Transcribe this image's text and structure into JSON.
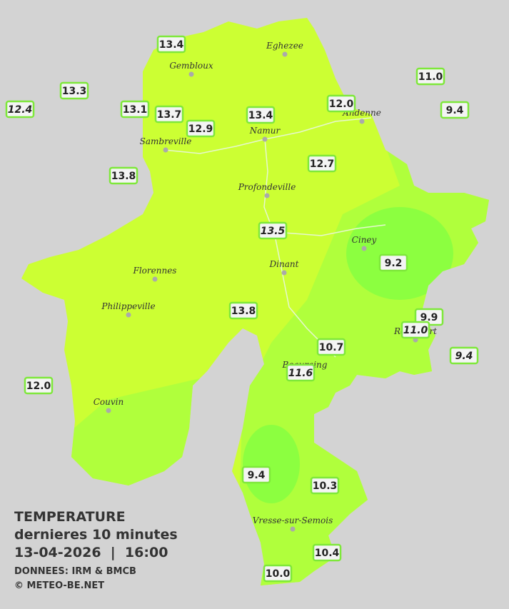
{
  "legend": {
    "title": "TEMPERATURE",
    "period": "dernieres 10 minutes",
    "timestamp": "13-04-2026  |  16:00",
    "source": "DONNEES: IRM & BMCB",
    "copyright": "© METEO-BE.NET"
  },
  "cities": [
    "Eghezee",
    "Gembloux",
    "Andenne",
    "Sambreville",
    "Namur",
    "Profondeville",
    "Ciney",
    "Dinant",
    "Florennes",
    "Philippeville",
    "Rochefort",
    "Beauraing",
    "Couvin",
    "Vresse-sur-Semois"
  ],
  "readings": [
    "13.4",
    "13.3",
    "12.4",
    "13.1",
    "13.7",
    "12.9",
    "13.4",
    "12.0",
    "11.0",
    "9.4",
    "13.8",
    "12.7",
    "13.5",
    "9.2",
    "13.8",
    "9.9",
    "11.0",
    "9.4",
    "10.7",
    "11.6",
    "12.0",
    "9.4",
    "10.3",
    "10.4",
    "10.0"
  ]
}
